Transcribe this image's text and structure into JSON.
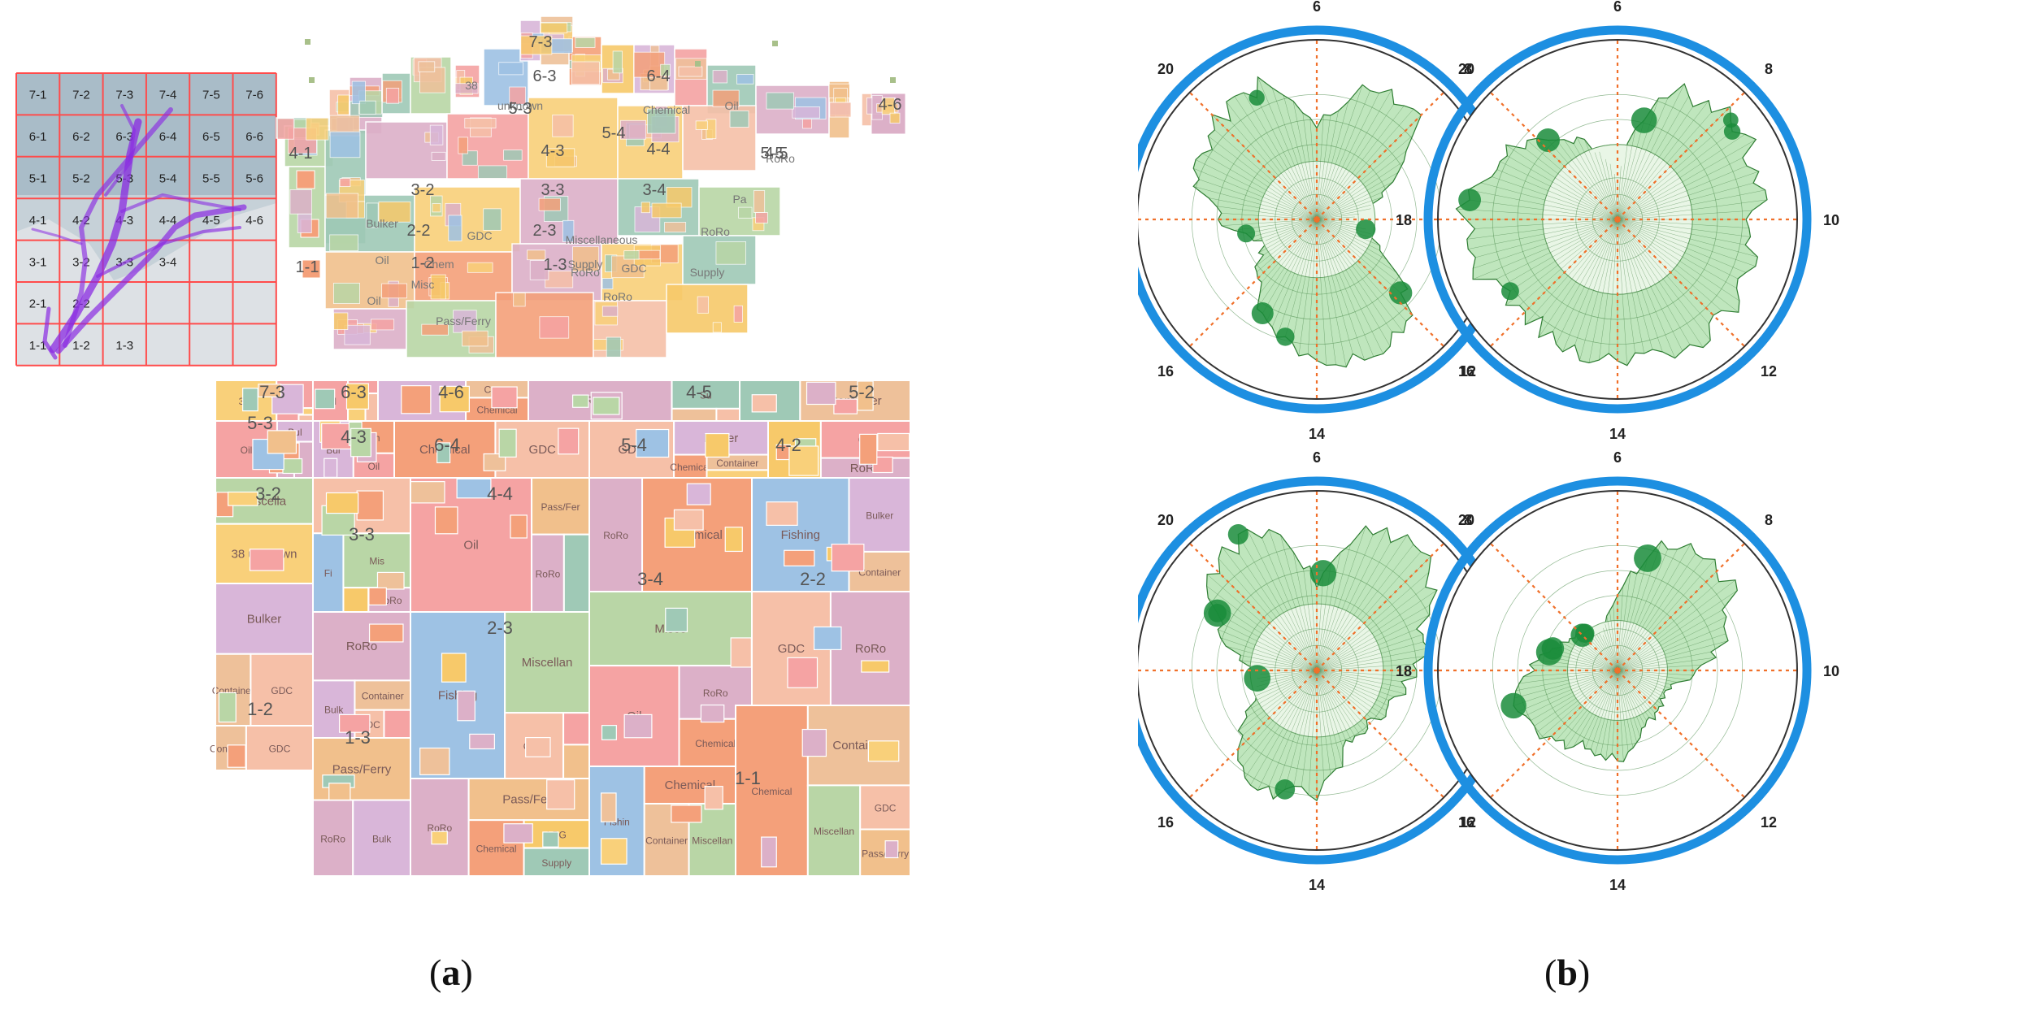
{
  "panel_a": {
    "caption": {
      "open": "(",
      "letter": "a",
      "close": ")"
    },
    "map": {
      "grid_labels": [
        [
          "7-1",
          "7-2",
          "7-3",
          "7-4",
          "7-5",
          "7-6"
        ],
        [
          "6-1",
          "6-2",
          "6-3",
          "6-4",
          "6-5",
          "6-6"
        ],
        [
          "5-1",
          "5-2",
          "5-3",
          "5-4",
          "5-5",
          "5-6"
        ],
        [
          "4-1",
          "4-2",
          "4-3",
          "4-4",
          "4-5",
          "4-6"
        ],
        [
          "3-1",
          "3-2",
          "3-3",
          "3-4",
          "",
          ""
        ],
        [
          "2-1",
          "2-2",
          "",
          "",
          "",
          ""
        ],
        [
          "1-1",
          "1-2",
          "1-3",
          "",
          "",
          ""
        ]
      ]
    },
    "cartogram_labels": [
      "7-3",
      "6-3",
      "6-4",
      "5-3",
      "5-4",
      "5-5",
      "4-1",
      "4-3",
      "4-4",
      "4-5",
      "4-6",
      "3-2",
      "3-3",
      "3-4",
      "2-2",
      "2-3",
      "1-1",
      "1-2",
      "1-3"
    ],
    "cartogram_cells": [
      "Oil",
      "GDC",
      "RoRo",
      "Chemical",
      "Container",
      "Supply",
      "Miscellaneous",
      "Bulker",
      "Pass/Ferry",
      "LPG",
      "Fishing",
      "38 unknown"
    ],
    "treemap_regions": [
      {
        "label": "7-3",
        "cells": [
          "3 B",
          "Oil",
          "Oil",
          "38 unknown",
          "GD Ro",
          "B",
          "Oil",
          "Fishi"
        ]
      },
      {
        "label": "6-3",
        "cells": [
          "Bul",
          "Ro",
          "Ro",
          "Ch",
          "Oil",
          "Oil"
        ]
      },
      {
        "label": "4-6",
        "cells": [
          "Conta",
          "Chemical",
          "B"
        ]
      },
      {
        "label": "4-5",
        "cells": [
          "Container",
          "GDC",
          "Miscellan",
          "RoRo",
          "Su"
        ]
      },
      {
        "label": "5-2",
        "cells": [
          "38 unknown",
          "Oil",
          "B"
        ]
      },
      {
        "label": "5-3",
        "cells": [
          "Bul",
          "Ch",
          "Oil"
        ]
      },
      {
        "label": "4-3",
        "cells": [
          "38 unknown",
          "Chemical",
          "GDC",
          "Oil",
          "LP",
          "RoRo"
        ]
      },
      {
        "label": "6-4",
        "cells": [
          "3",
          "Ch",
          "GDC",
          "Bulker",
          "Chemical",
          "Container"
        ]
      },
      {
        "label": "5-4",
        "cells": [
          "GDC",
          "LP",
          "Oil",
          "RoRo"
        ]
      },
      {
        "label": "4-2",
        "cells": [
          "38 unknown",
          "Bulk",
          "Chemical",
          "R",
          "Miscella",
          "38 unknown"
        ]
      },
      {
        "label": "3-2",
        "cells": [
          "Bulker",
          "Chemical",
          "GDC",
          "Fi",
          "Mis",
          "LP",
          "RoRo",
          "38 unknown",
          "Container"
        ]
      },
      {
        "label": "3-3",
        "cells": [
          "Chemical",
          "Fishing",
          "Miscellaneous",
          "GDC",
          "Oil",
          "Pass/Fer",
          "RoRo",
          "Sup ply"
        ]
      },
      {
        "label": "4-4",
        "cells": [
          "Chemical",
          "Container",
          "GDC",
          "LPG",
          "Misce",
          "Oil",
          "RoRo"
        ]
      },
      {
        "label": "3-4",
        "cells": [
          "0 unknown",
          "38 unknown",
          "Chemical",
          "Fishing",
          "Bulker",
          "Container",
          "Oil",
          "Pa",
          "GDC",
          "RoRo",
          "Supply"
        ]
      },
      {
        "label": "2-2",
        "cells": [
          "Container",
          "GDC",
          "Chemical",
          "Bulker"
        ]
      },
      {
        "label": "1-2",
        "cells": [
          "Container",
          "GDC",
          "Oil",
          "Pass/Ferry",
          "RoRo",
          "Bulk"
        ]
      },
      {
        "label": "1-3",
        "cells": [
          "Chemical",
          "LPG",
          "Supply",
          "GDC",
          "Container",
          "Miscellaneous",
          "RoRo",
          "Pass/Ferr"
        ]
      },
      {
        "label": "2-3",
        "cells": [
          "Chemical",
          "Container",
          "Miscellaneous",
          "GDC",
          "Pass/Ferry",
          "Supply",
          "Oil",
          "RoRo",
          "Bulker",
          "LPG",
          "0 unknown",
          "Fishin"
        ]
      },
      {
        "label": "1-1",
        "cells": [
          "Oil",
          "Pass/Ferry",
          "RoRo"
        ]
      }
    ],
    "colors": {
      "oil": "#f5a3a3",
      "gdc": "#f6c0a8",
      "roro": "#dcb0c8",
      "chemical": "#f4a07a",
      "container": "#eec19a",
      "supply": "#9fc9b6",
      "misc": "#b9d6a6",
      "bulker": "#d9b6d9",
      "passferry": "#f1c08c",
      "lpg": "#f7c96a",
      "fishing": "#9ec2e4",
      "unknown": "#f9d07a",
      "grid_line": "#ff4b4b",
      "map_bg": "#a9bcc8",
      "track": "#8a2be2"
    }
  },
  "panel_b": {
    "caption": {
      "open": "(",
      "letter": "b",
      "close": ")"
    },
    "hour_labels": [
      "6",
      "8",
      "10",
      "12",
      "14",
      "16",
      "18",
      "20"
    ],
    "ring_color": "#1d8fe1",
    "fill_colors": [
      "#e9f6e6",
      "#bfe6bd",
      "#8ed18c",
      "#3fb24e",
      "#1a8c3b"
    ]
  }
}
